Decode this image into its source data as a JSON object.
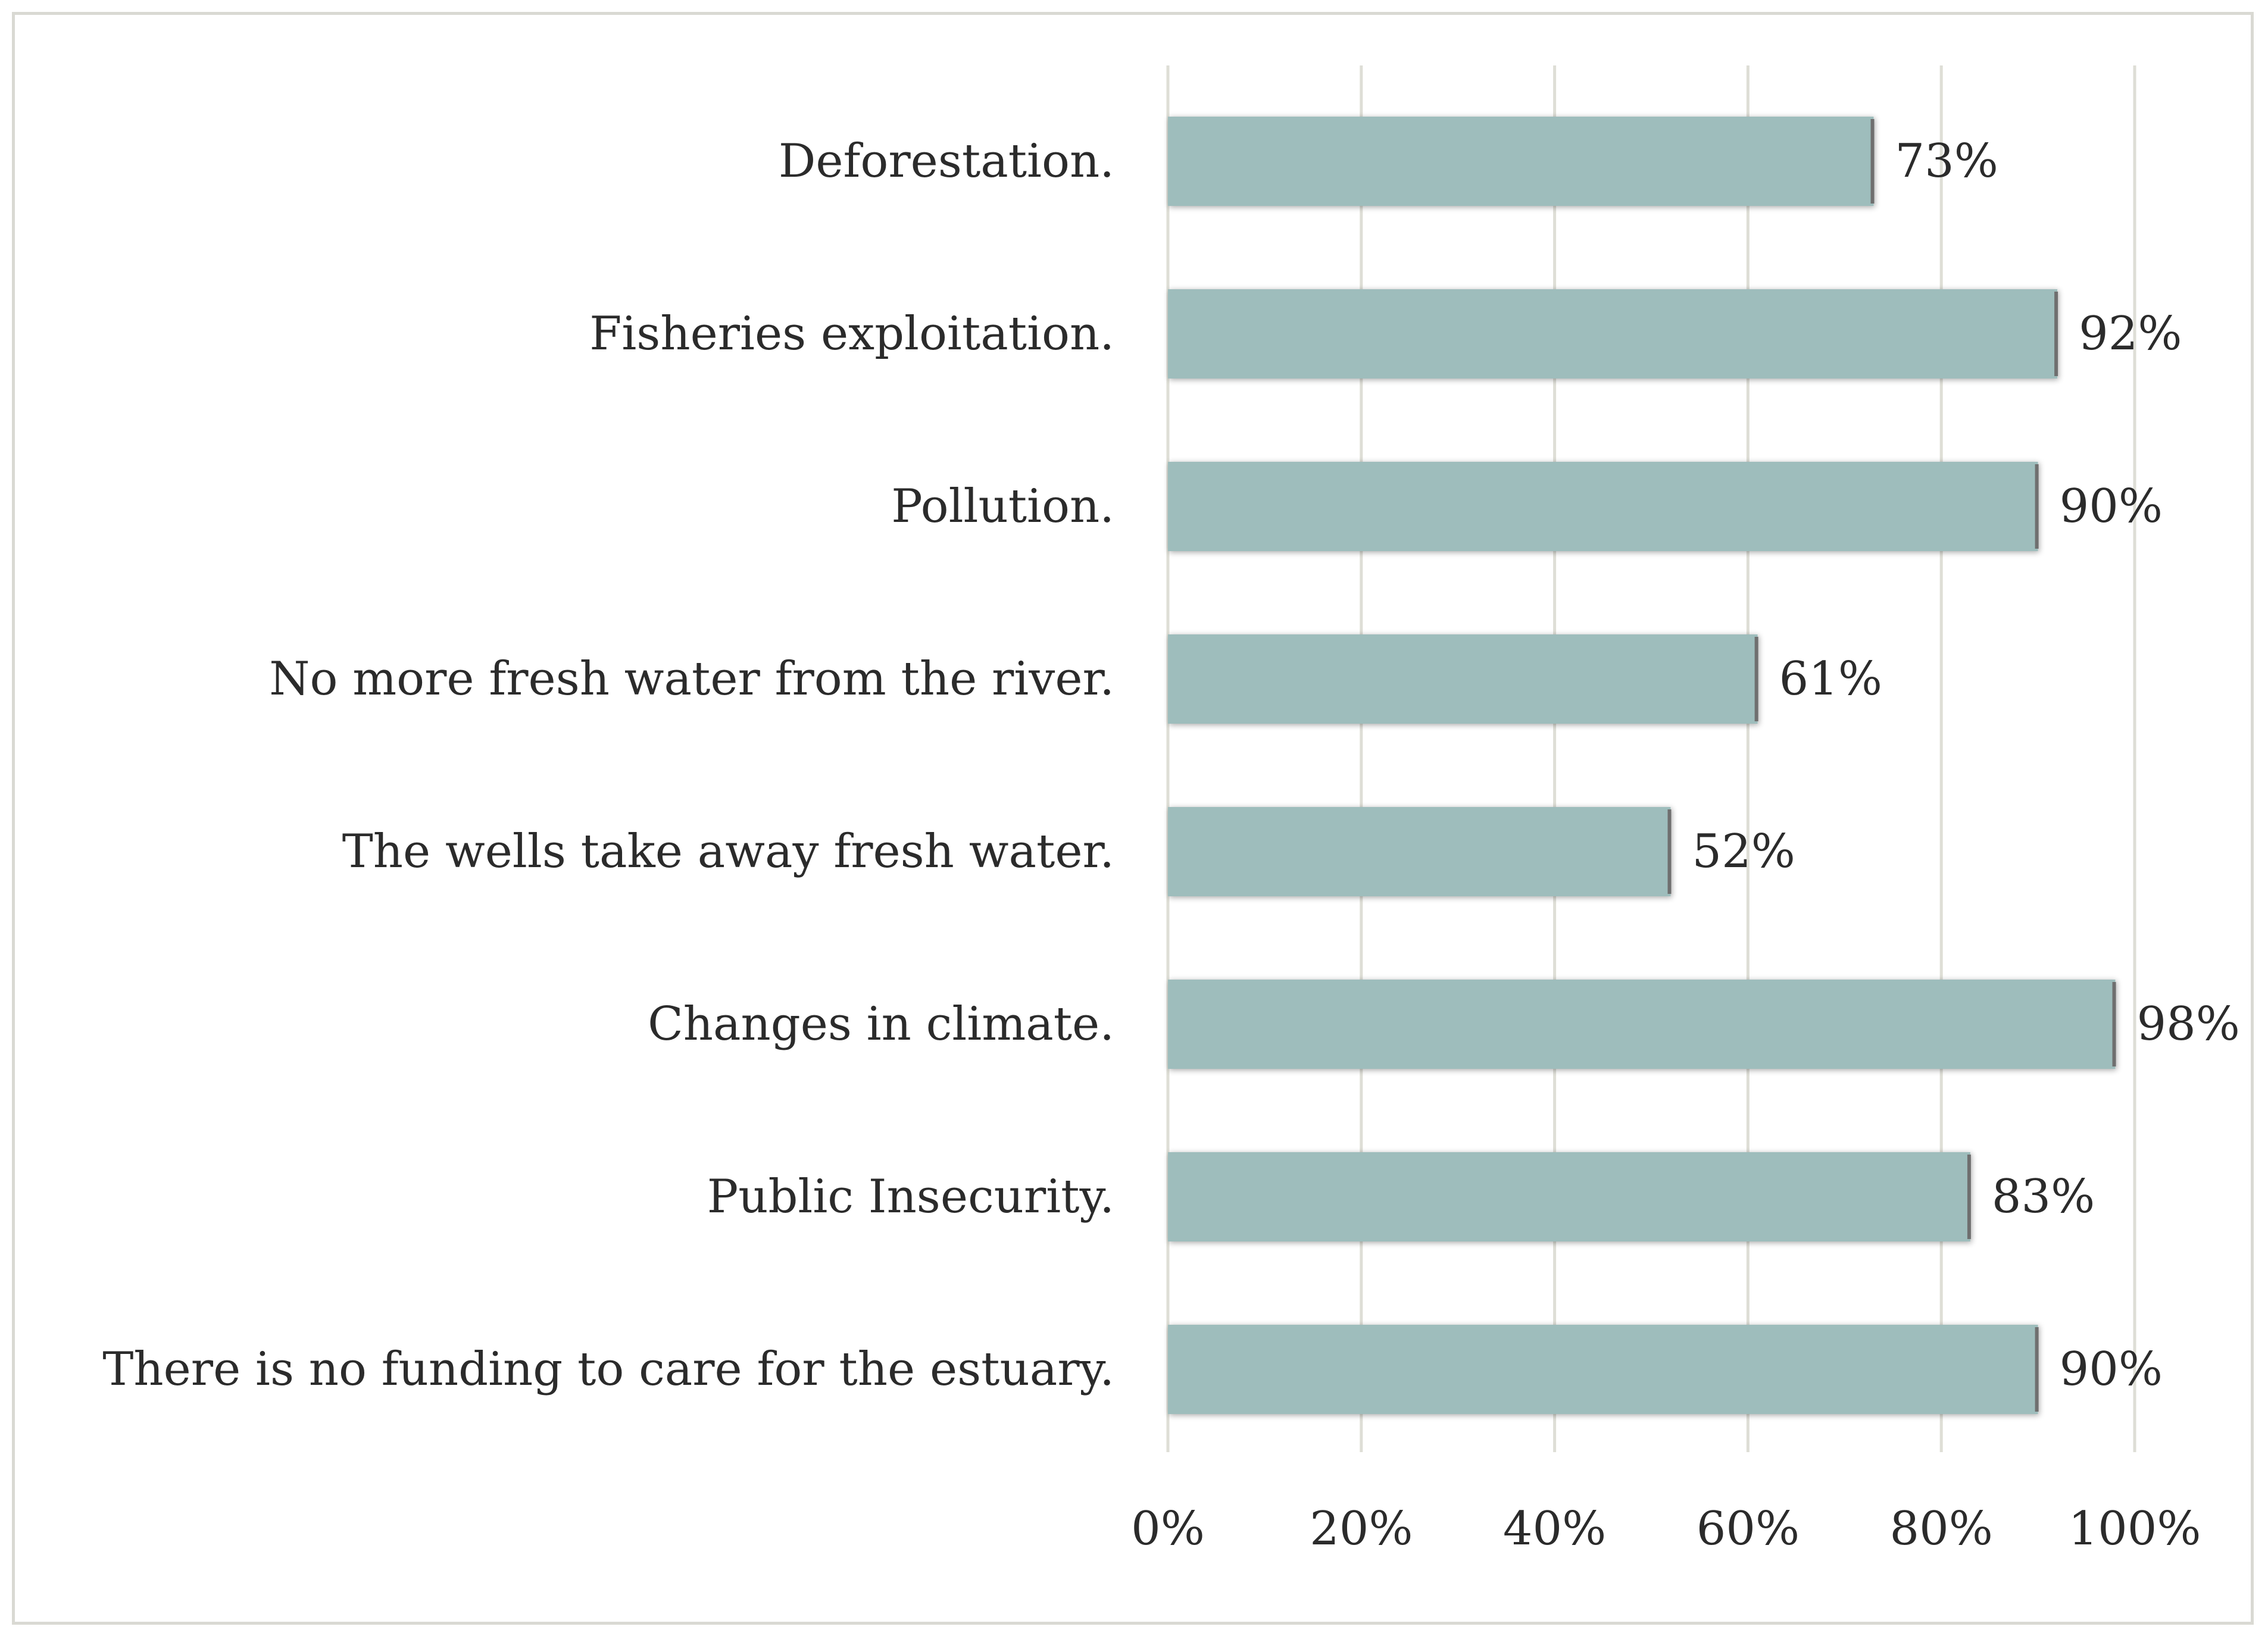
{
  "chart_data": {
    "type": "bar",
    "orientation": "horizontal",
    "title": "",
    "xlabel": "",
    "ylabel": "",
    "categories": [
      "Deforestation.",
      "Fisheries exploitation.",
      "Pollution.",
      "No more fresh water from the river.",
      "The wells take away fresh water.",
      "Changes in climate.",
      "Public Insecurity.",
      "There is no funding to care for the estuary."
    ],
    "values": [
      73,
      92,
      90,
      61,
      52,
      98,
      83,
      90
    ],
    "value_labels": [
      "73%",
      "92%",
      "90%",
      "61%",
      "52%",
      "98%",
      "83%",
      "90%"
    ],
    "xlim": [
      0,
      100
    ],
    "x_ticks": [
      0,
      20,
      40,
      60,
      80,
      100
    ],
    "x_tick_labels": [
      "0%",
      "20%",
      "40%",
      "60%",
      "80%",
      "100%"
    ],
    "grid": "vertical",
    "legend": "none",
    "bar_color": "#9ebdbc",
    "bar_edge_color": "#6f6f6f"
  }
}
